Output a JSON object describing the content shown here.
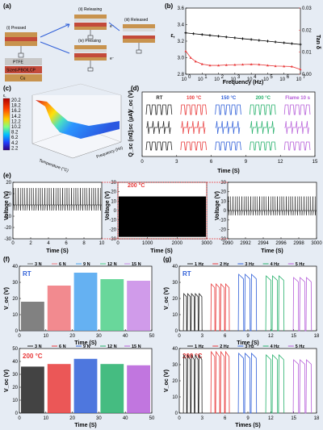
{
  "panels": {
    "a": {
      "label": "(a)",
      "states": [
        "(i) Pressed",
        "(ii) Releasing",
        "(iii) Released",
        "(iv) Pressing"
      ],
      "layers": [
        "PTFE",
        "Sized-PBO/LCP",
        "Cu"
      ],
      "charges": [
        "e⁻",
        "e⁻"
      ]
    },
    "b": {
      "label": "(b)"
    },
    "c": {
      "label": "(c)",
      "zlabel": "ε,",
      "ticks_z": [
        "20.2",
        "18.2",
        "16.2",
        "14.2",
        "12.2",
        "10.2",
        "8.2",
        "6.2",
        "4.2",
        "2.2"
      ],
      "xlabel": "Temperature (°C)",
      "ylabel": "Frequency (Hz)"
    },
    "d": {
      "label": "(d)",
      "headers": [
        "RT",
        "100 °C",
        "150 °C",
        "200 °C",
        "Flame 10 s"
      ],
      "ylabels": [
        "V_oc (V)",
        "I_sc (µA)",
        "Q_sc (nC)"
      ],
      "xlabel": "Time (S)",
      "xticks": [
        "0",
        "3",
        "6",
        "9",
        "12",
        "15"
      ]
    },
    "e": {
      "label": "(e)",
      "annotation": "200 °C",
      "ylabel": "Voltage (V)",
      "xlabel": "Time (S)"
    },
    "f": {
      "label": "(f)",
      "legend": [
        "3 N",
        "6 N",
        "9 N",
        "12 N",
        "15 N"
      ],
      "tags": [
        "RT",
        "200 °C"
      ],
      "ylabel": "V_oc (V)",
      "xlabel": "Time (S)"
    },
    "g": {
      "label": "(g)",
      "legend": [
        "1 Hz",
        "2 Hz",
        "3 Hz",
        "4 Hz",
        "5 Hz"
      ],
      "tags": [
        "RT",
        "200 °C"
      ],
      "ylabel": "V_oc (V)",
      "xlabels": [
        "Time (S)",
        "Times (S)"
      ]
    }
  },
  "colors": {
    "black": "#222222",
    "red": "#e8393a",
    "blue": "#2f5fd8",
    "green": "#25b06b",
    "purple": "#b65ed9",
    "gray": "#6b6b6b",
    "pink": "#f0767b",
    "cyan": "#4aa3f0",
    "mint": "#4fd08a",
    "violet": "#c88ae6"
  },
  "chart_data": [
    {
      "type": "line",
      "panel": "b",
      "title": "",
      "xlabel": "Frequency (Hz)",
      "ylabel": "ε,",
      "y2label": "Tan δ",
      "xscale": "log",
      "xlim": [
        1,
        10000000
      ],
      "ylim": [
        2.8,
        3.6
      ],
      "y2lim": [
        0.0,
        0.03
      ],
      "xticks": [
        "10^0",
        "10^1",
        "10^2",
        "10^3",
        "10^4",
        "10^5",
        "10^6",
        "10^7"
      ],
      "yticks": [
        "2.8",
        "3.0",
        "3.2",
        "3.4",
        "3.6"
      ],
      "y2ticks": [
        "0.00",
        "0.01",
        "0.02",
        "0.03"
      ],
      "series": [
        {
          "axis": "left",
          "color": "#000000",
          "x": [
            1,
            3,
            10,
            30,
            100,
            300,
            1000,
            3000,
            10000,
            30000,
            100000,
            300000,
            1000000,
            3000000,
            10000000
          ],
          "y": [
            3.3,
            3.29,
            3.28,
            3.27,
            3.26,
            3.25,
            3.24,
            3.23,
            3.22,
            3.21,
            3.2,
            3.19,
            3.18,
            3.17,
            3.16
          ]
        },
        {
          "axis": "right",
          "color": "#e8393a",
          "x": [
            1,
            2,
            4,
            10,
            30,
            100,
            300,
            1000,
            3000,
            10000,
            30000,
            100000,
            300000,
            1000000,
            3000000,
            10000000
          ],
          "y": [
            0.0105,
            0.0075,
            0.0058,
            0.0046,
            0.004,
            0.004,
            0.0042,
            0.0043,
            0.0044,
            0.0045,
            0.0044,
            0.004,
            0.0037,
            0.0036,
            0.0035,
            0.0022
          ]
        }
      ]
    },
    {
      "type": "line",
      "panel": "e",
      "ylabel": "Voltage (V)",
      "xlabel": "Time (S)",
      "subplots": [
        {
          "xlim": [
            0,
            10
          ],
          "xticks": [
            "0",
            "2",
            "4",
            "6",
            "8",
            "10"
          ],
          "ylim": [
            -30,
            20
          ],
          "yticks": [
            "-30",
            "-20",
            "-10",
            "0",
            "10",
            "20"
          ],
          "peak": 15,
          "valley": -5,
          "cycles": 40
        },
        {
          "xlim": [
            0,
            3000
          ],
          "xticks": [
            "0",
            "1000",
            "2000",
            "3000"
          ],
          "ylim": [
            -30,
            30
          ],
          "yticks": [
            "-30",
            "-20",
            "-10",
            "0",
            "10",
            "20",
            "30"
          ],
          "dense": true,
          "peak": 15,
          "valley": -28
        },
        {
          "xlim": [
            2990,
            3000
          ],
          "xticks": [
            "2990",
            "2992",
            "2994",
            "2996",
            "2998",
            "3000"
          ],
          "ylim": [
            -30,
            30
          ],
          "yticks": [
            "-30",
            "-20",
            "-10",
            "0",
            "10",
            "20",
            "30"
          ],
          "peak": 15,
          "valley": -5,
          "cycles": 40
        }
      ]
    },
    {
      "type": "line",
      "panel": "f",
      "subplots": [
        {
          "tag": "RT",
          "xlim": [
            0,
            50
          ],
          "xticks": [
            "0",
            "10",
            "20",
            "30",
            "40",
            "50"
          ],
          "ylim": [
            0,
            40
          ],
          "yticks": [
            "0",
            "10",
            "20",
            "30",
            "40"
          ],
          "levels": [
            {
              "name": "3 N",
              "v": 18
            },
            {
              "name": "6 N",
              "v": 28
            },
            {
              "name": "9 N",
              "v": 36
            },
            {
              "name": "12 N",
              "v": 32
            },
            {
              "name": "15 N",
              "v": 31
            }
          ]
        },
        {
          "tag": "200 °C",
          "xlim": [
            0,
            50
          ],
          "xticks": [
            "0",
            "10",
            "20",
            "30",
            "40",
            "50"
          ],
          "ylim": [
            0,
            50
          ],
          "yticks": [
            "0",
            "10",
            "20",
            "30",
            "40",
            "50"
          ],
          "levels": [
            {
              "name": "3 N",
              "v": 36
            },
            {
              "name": "6 N",
              "v": 38
            },
            {
              "name": "9 N",
              "v": 42
            },
            {
              "name": "12 N",
              "v": 38
            },
            {
              "name": "15 N",
              "v": 37
            }
          ]
        }
      ]
    },
    {
      "type": "line",
      "panel": "g",
      "subplots": [
        {
          "tag": "RT",
          "xlim": [
            0,
            18
          ],
          "xticks": [
            "0",
            "3",
            "6",
            "9",
            "12",
            "15",
            "18"
          ],
          "ylim": [
            0,
            40
          ],
          "yticks": [
            "0",
            "10",
            "20",
            "30",
            "40"
          ],
          "levels": [
            {
              "name": "1 Hz",
              "v": 23
            },
            {
              "name": "2 Hz",
              "v": 29
            },
            {
              "name": "3 Hz",
              "v": 35
            },
            {
              "name": "4 Hz",
              "v": 34
            },
            {
              "name": "5 Hz",
              "v": 33
            }
          ]
        },
        {
          "tag": "200 °C",
          "xlim": [
            0,
            18
          ],
          "xticks": [
            "0",
            "3",
            "6",
            "9",
            "12",
            "15",
            "18"
          ],
          "ylim": [
            0,
            40
          ],
          "yticks": [
            "0",
            "10",
            "20",
            "30",
            "40"
          ],
          "levels": [
            {
              "name": "1 Hz",
              "v": 36
            },
            {
              "name": "2 Hz",
              "v": 38
            },
            {
              "name": "3 Hz",
              "v": 37
            },
            {
              "name": "4 Hz",
              "v": 36
            },
            {
              "name": "5 Hz",
              "v": 33
            }
          ]
        }
      ]
    }
  ]
}
